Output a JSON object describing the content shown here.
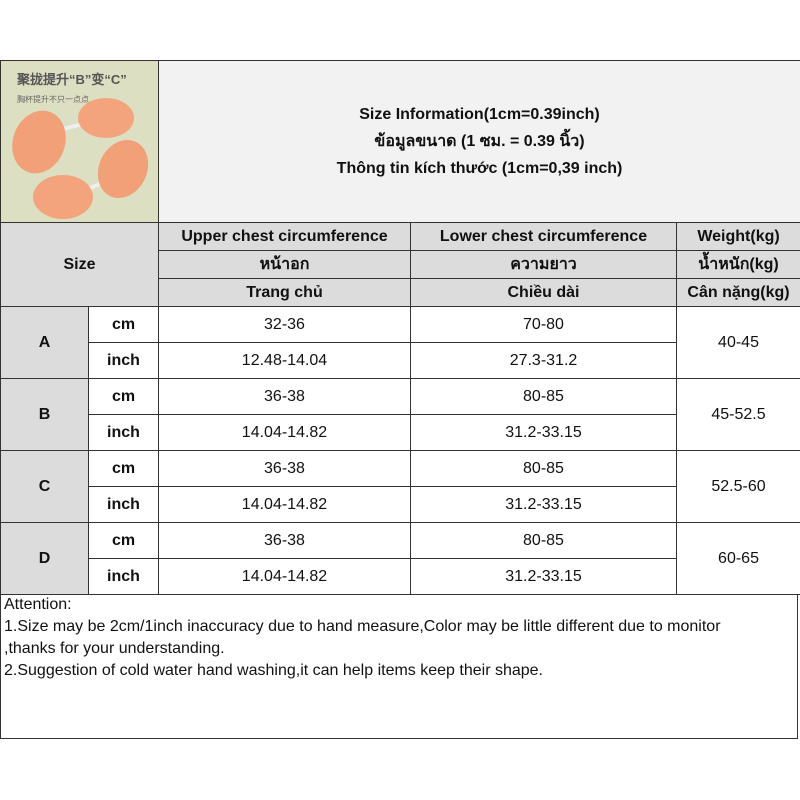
{
  "image": {
    "caption_cn": "聚拢提升“B”变“C”",
    "sub_cn": "胸杯提升不只一点点"
  },
  "title": [
    "Size Information(1cm=0.39inch)",
    "ข้อมูลขนาด (1 ซม. = 0.39 นิ้ว)",
    "Thông tin kích thước (1cm=0,39 inch)"
  ],
  "header": {
    "size": "Size",
    "cols": [
      [
        "Upper chest circumference",
        "หน้าอก",
        "Trang chủ"
      ],
      [
        "Lower chest circumference",
        "ความยาว",
        "Chiều dài"
      ],
      [
        "Weight(kg)",
        "น้ำหนัก(kg)",
        "Cân nặng(kg)"
      ]
    ]
  },
  "rows": [
    {
      "size": "A",
      "cm": [
        "32-36",
        "70-80"
      ],
      "inch": [
        "12.48-14.04",
        "27.3-31.2"
      ],
      "weight": "40-45"
    },
    {
      "size": "B",
      "cm": [
        "36-38",
        "80-85"
      ],
      "inch": [
        "14.04-14.82",
        "31.2-33.15"
      ],
      "weight": "45-52.5"
    },
    {
      "size": "C",
      "cm": [
        "36-38",
        "80-85"
      ],
      "inch": [
        "14.04-14.82",
        "31.2-33.15"
      ],
      "weight": "52.5-60"
    },
    {
      "size": "D",
      "cm": [
        "36-38",
        "80-85"
      ],
      "inch": [
        "14.04-14.82",
        "31.2-33.15"
      ],
      "weight": "60-65"
    }
  ],
  "units": {
    "cm": "cm",
    "inch": "inch"
  },
  "attention": [
    "Attention:",
    "1.Size may be 2cm/1inch inaccuracy due to hand measure,Color may be little different due to monitor",
    ",thanks for your understanding.",
    "2.Suggestion of cold water hand washing,it can help items keep their shape."
  ]
}
